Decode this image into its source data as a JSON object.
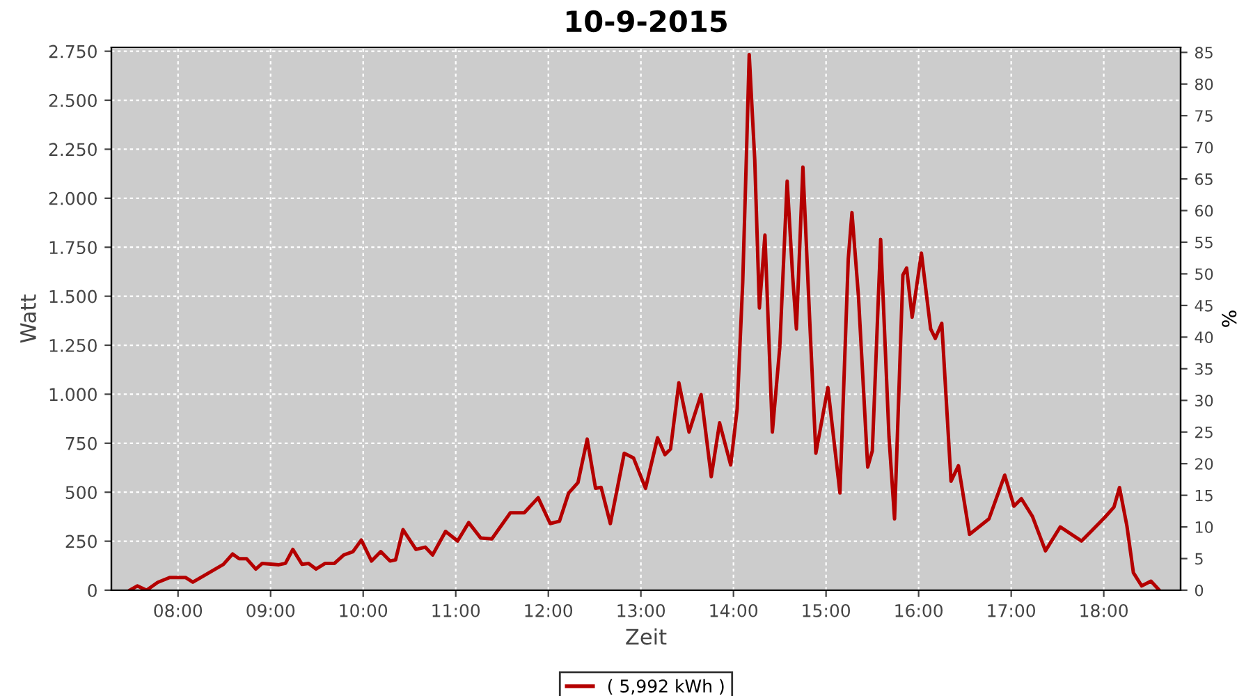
{
  "chart_data": {
    "type": "line",
    "title": "10-9-2015",
    "xlabel": "Zeit",
    "ylabel": "Watt",
    "y2label": "%",
    "series": [
      {
        "name": "( 5,992 kWh )",
        "color": "#b40000",
        "x": [
          7.48,
          7.56,
          7.66,
          7.78,
          7.91,
          8.08,
          8.16,
          8.29,
          8.49,
          8.59,
          8.66,
          8.74,
          8.84,
          8.91,
          9.09,
          9.16,
          9.24,
          9.34,
          9.41,
          9.49,
          9.59,
          9.69,
          9.79,
          9.89,
          9.98,
          10.09,
          10.19,
          10.29,
          10.35,
          10.43,
          10.57,
          10.67,
          10.75,
          10.89,
          11.02,
          11.14,
          11.27,
          11.39,
          11.59,
          11.74,
          11.89,
          12.02,
          12.12,
          12.22,
          12.32,
          12.42,
          12.51,
          12.57,
          12.67,
          12.82,
          12.92,
          13.05,
          13.18,
          13.26,
          13.32,
          13.41,
          13.52,
          13.65,
          13.76,
          13.85,
          13.97,
          14.04,
          14.1,
          14.14,
          14.17,
          14.23,
          14.28,
          14.34,
          14.42,
          14.5,
          14.58,
          14.64,
          14.68,
          14.75,
          14.83,
          14.89,
          15.02,
          15.15,
          15.24,
          15.28,
          15.35,
          15.45,
          15.5,
          15.59,
          15.68,
          15.74,
          15.83,
          15.87,
          15.93,
          16.03,
          16.13,
          16.18,
          16.25,
          16.35,
          16.43,
          16.55,
          16.76,
          16.93,
          17.03,
          17.11,
          17.23,
          17.37,
          17.53,
          17.76,
          18.01,
          18.11,
          18.17,
          18.25,
          18.32,
          18.41,
          18.51,
          18.6
        ],
        "values": [
          0,
          22,
          0,
          40,
          65,
          65,
          41,
          77,
          132,
          185,
          161,
          161,
          108,
          137,
          130,
          137,
          208,
          132,
          137,
          108,
          137,
          137,
          180,
          197,
          256,
          149,
          197,
          149,
          155,
          309,
          208,
          220,
          180,
          300,
          251,
          345,
          266,
          262,
          395,
          395,
          472,
          340,
          352,
          496,
          549,
          771,
          520,
          525,
          340,
          699,
          675,
          520,
          778,
          692,
          720,
          1058,
          807,
          998,
          579,
          854,
          639,
          926,
          1572,
          2219,
          2733,
          2195,
          1440,
          1812,
          807,
          1238,
          2087,
          1597,
          1333,
          2159,
          1310,
          699,
          1034,
          496,
          1690,
          1927,
          1501,
          628,
          711,
          1790,
          783,
          364,
          1608,
          1644,
          1393,
          1720,
          1333,
          1285,
          1362,
          556,
          635,
          285,
          364,
          587,
          429,
          467,
          376,
          201,
          323,
          251,
          371,
          424,
          524,
          328,
          89,
          22,
          46,
          0
        ]
      }
    ],
    "xlim": [
      7.28,
      18.83
    ],
    "xticks": [
      {
        "value": 8,
        "label": "08:00"
      },
      {
        "value": 9,
        "label": "09:00"
      },
      {
        "value": 10,
        "label": "10:00"
      },
      {
        "value": 11,
        "label": "11:00"
      },
      {
        "value": 12,
        "label": "12:00"
      },
      {
        "value": 13,
        "label": "13:00"
      },
      {
        "value": 14,
        "label": "14:00"
      },
      {
        "value": 15,
        "label": "15:00"
      },
      {
        "value": 16,
        "label": "16:00"
      },
      {
        "value": 17,
        "label": "17:00"
      },
      {
        "value": 18,
        "label": "18:00"
      }
    ],
    "ylim": [
      0,
      2770
    ],
    "yticks": [
      0,
      250,
      500,
      750,
      {
        "value": 1000,
        "label": "1.000"
      },
      {
        "value": 1250,
        "label": "1.250"
      },
      {
        "value": 1500,
        "label": "1.500"
      },
      {
        "value": 1750,
        "label": "1.750"
      },
      {
        "value": 2000,
        "label": "2.000"
      },
      {
        "value": 2250,
        "label": "2.250"
      },
      {
        "value": 2500,
        "label": "2.500"
      },
      {
        "value": 2750,
        "label": "2.750"
      }
    ],
    "y2lim": [
      0,
      85.8
    ],
    "y2ticks": [
      0,
      5,
      10,
      15,
      20,
      25,
      30,
      35,
      40,
      45,
      50,
      55,
      60,
      65,
      70,
      75,
      80,
      85
    ],
    "grid": true,
    "legend": "bottom",
    "line_style": "solid",
    "marker": "none"
  }
}
